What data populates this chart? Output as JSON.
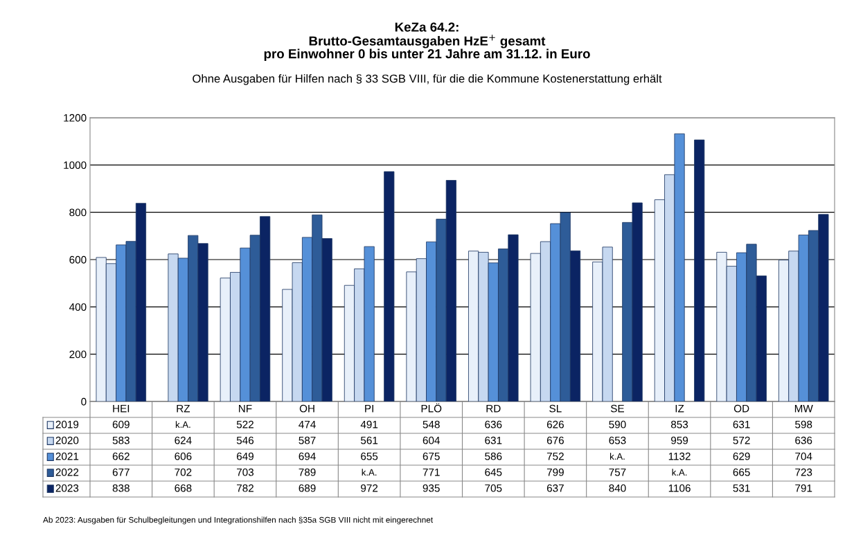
{
  "chart_data": {
    "type": "bar",
    "title": "KeZa 64.2:\nBrutto-Gesamtausgaben HzE$^{+}$ gesamt\npro Einwohner 0 bis unter 21 Jahre am 31.12. in Euro",
    "subtitle": "Ohne Ausgaben für Hilfen nach § 33 SGB VIII, für die die Kommune Kostenerstattung erhält",
    "categories": [
      "HEI",
      "RZ",
      "NF",
      "OH",
      "PI",
      "PLÖ",
      "RD",
      "SL",
      "SE",
      "IZ",
      "OD",
      "MW"
    ],
    "series": [
      {
        "name": "2019",
        "color": "#e8f0fa",
        "values": [
          609,
          null,
          522,
          474,
          491,
          548,
          636,
          626,
          590,
          853,
          631,
          598
        ],
        "value_labels": [
          "609",
          "k.A.",
          "522",
          "474",
          "491",
          "548",
          "636",
          "626",
          "590",
          "853",
          "631",
          "598"
        ]
      },
      {
        "name": "2020",
        "color": "#c6d8f0",
        "values": [
          583,
          624,
          546,
          587,
          561,
          604,
          631,
          676,
          653,
          959,
          572,
          636
        ],
        "value_labels": [
          "583",
          "624",
          "546",
          "587",
          "561",
          "604",
          "631",
          "676",
          "653",
          "959",
          "572",
          "636"
        ]
      },
      {
        "name": "2021",
        "color": "#5590d8",
        "values": [
          662,
          606,
          649,
          694,
          655,
          675,
          586,
          752,
          null,
          1132,
          629,
          704
        ],
        "value_labels": [
          "662",
          "606",
          "649",
          "694",
          "655",
          "675",
          "586",
          "752",
          "k.A.",
          "1132",
          "629",
          "704"
        ]
      },
      {
        "name": "2022",
        "color": "#2e5c98",
        "values": [
          677,
          702,
          703,
          789,
          null,
          771,
          645,
          799,
          757,
          null,
          665,
          723
        ],
        "value_labels": [
          "677",
          "702",
          "703",
          "789",
          "k.A.",
          "771",
          "645",
          "799",
          "757",
          "k.A.",
          "665",
          "723"
        ]
      },
      {
        "name": "2023",
        "color": "#0b2463",
        "values": [
          838,
          668,
          782,
          689,
          972,
          935,
          705,
          637,
          840,
          1106,
          531,
          791
        ],
        "value_labels": [
          "838",
          "668",
          "782",
          "689",
          "972",
          "935",
          "705",
          "637",
          "840",
          "1106",
          "531",
          "791"
        ]
      }
    ],
    "ylim": [
      0,
      1200
    ],
    "yticks": [
      0,
      200,
      400,
      600,
      800,
      1000,
      1200
    ],
    "grid": "y",
    "legend": "bottom left",
    "annotations": [
      "Ab 2023: Ausgaben für Schulbegleitungen und Integrationshilfen nach §35a SGB VIII nicht mit eingerechnet"
    ]
  }
}
